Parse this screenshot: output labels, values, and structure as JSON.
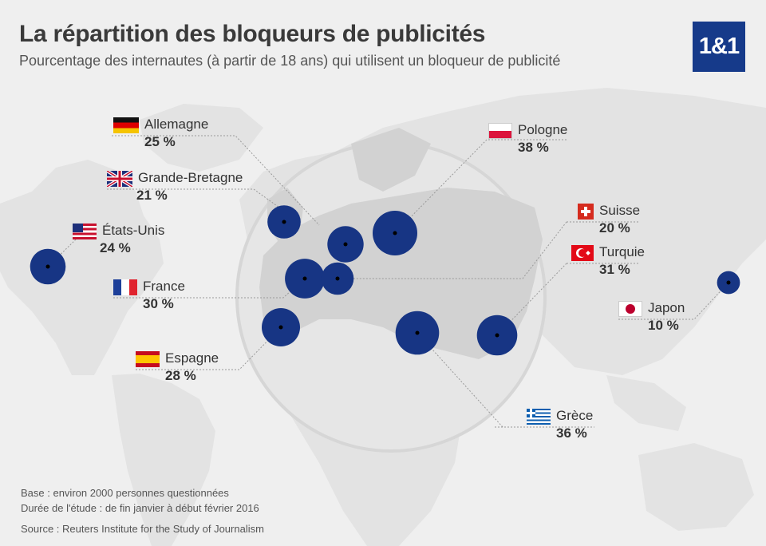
{
  "header": {
    "title": "La répartition des bloqueurs de publicités",
    "subtitle": "Pourcentage des internautes (à partir de 18 ans) qui utilisent un bloqueur de publicité"
  },
  "brand": {
    "logo_text": "1&1",
    "color": "#163a8a"
  },
  "bubble_color": "#173584",
  "countries": [
    {
      "id": "allemagne",
      "name": "Allemagne",
      "value": "25 %",
      "percent": 25,
      "flag": "flag-germany"
    },
    {
      "id": "grande-bretagne",
      "name": "Grande-Bretagne",
      "value": "21 %",
      "percent": 21,
      "flag": "flag-uk"
    },
    {
      "id": "etats-unis",
      "name": "États-Unis",
      "value": "24 %",
      "percent": 24,
      "flag": "flag-usa"
    },
    {
      "id": "france",
      "name": "France",
      "value": "30 %",
      "percent": 30,
      "flag": "flag-france"
    },
    {
      "id": "espagne",
      "name": "Espagne",
      "value": "28 %",
      "percent": 28,
      "flag": "flag-spain"
    },
    {
      "id": "pologne",
      "name": "Pologne",
      "value": "38 %",
      "percent": 38,
      "flag": "flag-poland"
    },
    {
      "id": "suisse",
      "name": "Suisse",
      "value": "20 %",
      "percent": 20,
      "flag": "flag-switzerland"
    },
    {
      "id": "turquie",
      "name": "Turquie",
      "value": "31 %",
      "percent": 31,
      "flag": "flag-turkey"
    },
    {
      "id": "japon",
      "name": "Japon",
      "value": "10 %",
      "percent": 10,
      "flag": "flag-japan"
    },
    {
      "id": "grece",
      "name": "Grèce",
      "value": "36 %",
      "percent": 36,
      "flag": "flag-greece"
    }
  ],
  "footer": {
    "base": "Base : environ 2000 personnes questionnées",
    "duration": "Durée de l'étude : de fin janvier à début février 2016",
    "source": "Source :  Reuters Institute for the Study of Journalism"
  }
}
